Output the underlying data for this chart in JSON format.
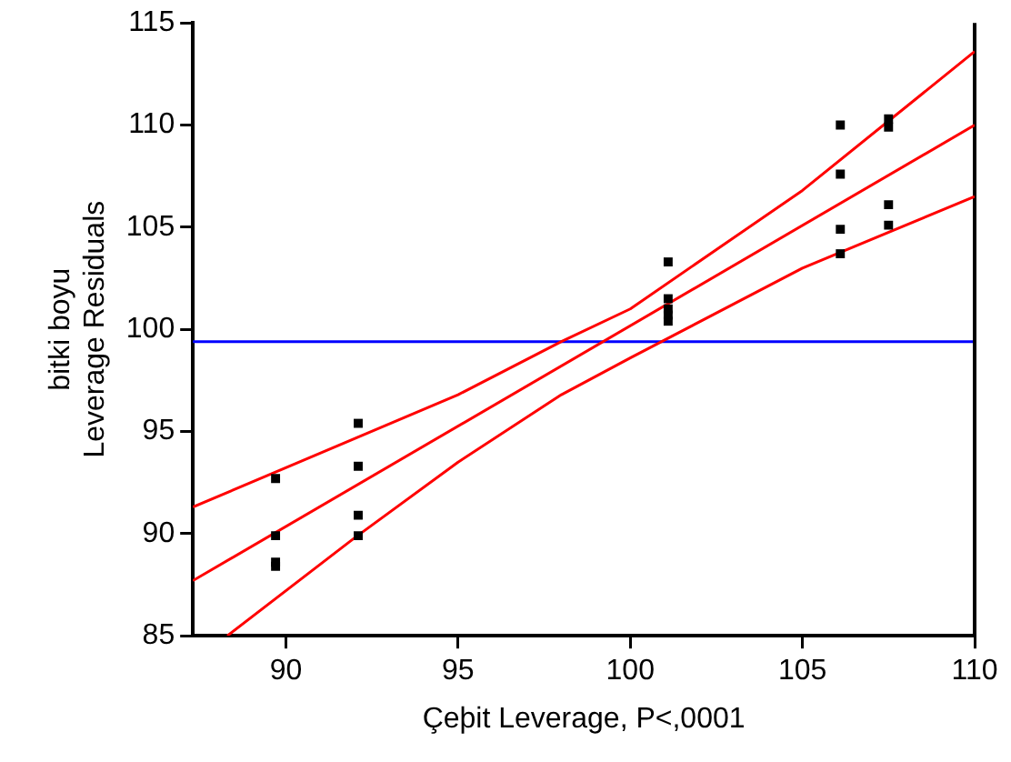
{
  "chart_data": {
    "type": "scatter",
    "xlabel": "Çeþit Leverage, P<,0001",
    "ylabel": "bitki boyu\nLeverage Residuals",
    "xlim": [
      87.3,
      110
    ],
    "xticks": [
      90,
      95,
      100,
      105,
      110
    ],
    "ylim": [
      85,
      115
    ],
    "yticks": [
      85,
      90,
      95,
      100,
      105,
      110,
      115
    ],
    "grid": false,
    "legend": false,
    "marker": "square",
    "series": [
      {
        "color": "#000000",
        "x": [
          89.7,
          89.7,
          89.7,
          89.7,
          92.1,
          92.1,
          92.1,
          92.1,
          101.1,
          101.1,
          101.1,
          101.1,
          101.1,
          106.1,
          106.1,
          106.1,
          106.1,
          107.5,
          107.5,
          107.5,
          107.5
        ],
        "values": [
          92.7,
          89.9,
          88.6,
          88.4,
          95.4,
          93.3,
          90.9,
          89.9,
          103.3,
          101.5,
          101,
          100.7,
          100.4,
          110,
          107.6,
          104.9,
          103.7,
          110.3,
          109.9,
          106.1,
          105.1
        ]
      },
      {
        "type": "line",
        "marker": "none",
        "color": "#ff0000",
        "x": [
          87.3,
          110
        ],
        "values": [
          87.7,
          110
        ]
      },
      {
        "type": "line",
        "marker": "none",
        "color": "#ff0000",
        "x": [
          87.3,
          95,
          98,
          100,
          105,
          110
        ],
        "values": [
          91.3,
          96.8,
          99.4,
          101,
          106.8,
          113.6
        ]
      },
      {
        "type": "line",
        "marker": "none",
        "color": "#ff0000",
        "x": [
          88.3,
          92,
          95,
          98,
          100,
          105,
          110
        ],
        "values": [
          85,
          89.8,
          93.5,
          96.8,
          98.6,
          103,
          106.5
        ]
      }
    ],
    "ref_lines": [
      {
        "axis": "y",
        "value": 99.4,
        "color": "#0000ff"
      }
    ]
  }
}
